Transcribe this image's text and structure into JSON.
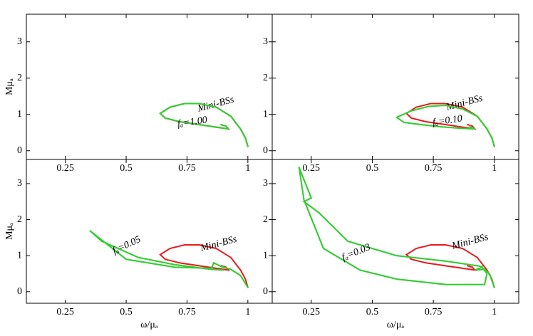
{
  "chart_data": [
    {
      "type": "line",
      "ylabel": "Mμₐ",
      "xlim": [
        0.09,
        1.1
      ],
      "ylim": [
        -0.24,
        3.76
      ],
      "xticks": [
        0.25,
        0.5,
        0.75,
        1
      ],
      "yticks": [
        0,
        1,
        2,
        3
      ],
      "series": [
        {
          "name": "Mini-BSs",
          "color": "#e8191c",
          "x": [
            1,
            0.99,
            0.97,
            0.93,
            0.87,
            0.8,
            0.74,
            0.68,
            0.64,
            0.66,
            0.72,
            0.8,
            0.87,
            0.92,
            0.91,
            0.89
          ],
          "values": [
            0.12,
            0.35,
            0.6,
            0.95,
            1.2,
            1.3,
            1.3,
            1.2,
            1.03,
            0.9,
            0.8,
            0.72,
            0.65,
            0.6,
            0.68,
            0.72
          ]
        },
        {
          "name": "fₐ=1.00",
          "color": "#33cc33",
          "x": [
            1,
            0.99,
            0.97,
            0.93,
            0.87,
            0.8,
            0.74,
            0.68,
            0.64,
            0.66,
            0.72,
            0.8,
            0.87,
            0.92,
            0.91,
            0.89
          ],
          "values": [
            0.12,
            0.35,
            0.6,
            0.95,
            1.2,
            1.3,
            1.3,
            1.2,
            1.03,
            0.9,
            0.8,
            0.72,
            0.65,
            0.6,
            0.68,
            0.72
          ]
        }
      ]
    },
    {
      "type": "line",
      "xlim": [
        0.09,
        1.1
      ],
      "ylim": [
        -0.24,
        3.76
      ],
      "xticks": [
        0.25,
        0.5,
        0.75,
        1
      ],
      "yticks": [
        0,
        1,
        2,
        3
      ],
      "series": [
        {
          "name": "Mini-BSs",
          "color": "#e8191c",
          "x": [
            1,
            0.99,
            0.97,
            0.93,
            0.87,
            0.8,
            0.74,
            0.68,
            0.64,
            0.66,
            0.72,
            0.8,
            0.87,
            0.92,
            0.91,
            0.89
          ],
          "values": [
            0.12,
            0.35,
            0.6,
            0.95,
            1.2,
            1.3,
            1.3,
            1.2,
            1.03,
            0.9,
            0.8,
            0.72,
            0.65,
            0.6,
            0.68,
            0.72
          ]
        },
        {
          "name": "fₐ=0.10",
          "color": "#33cc33",
          "x": [
            1,
            0.99,
            0.97,
            0.93,
            0.87,
            0.8,
            0.73,
            0.66,
            0.6,
            0.63,
            0.7,
            0.78,
            0.86,
            0.92,
            0.9
          ],
          "values": [
            0.12,
            0.35,
            0.6,
            0.95,
            1.15,
            1.25,
            1.22,
            1.1,
            0.92,
            0.78,
            0.72,
            0.66,
            0.62,
            0.6,
            0.68
          ]
        }
      ]
    },
    {
      "type": "line",
      "ylabel": "Mμₐ",
      "xlabel": "ω/μₐ",
      "xlim": [
        0.09,
        1.1
      ],
      "ylim": [
        -0.32,
        3.67
      ],
      "xticks": [
        0.25,
        0.5,
        0.75,
        1
      ],
      "yticks": [
        0,
        1,
        2,
        3
      ],
      "series": [
        {
          "name": "Mini-BSs",
          "color": "#e8191c",
          "x": [
            1,
            0.99,
            0.97,
            0.93,
            0.87,
            0.8,
            0.74,
            0.68,
            0.64,
            0.66,
            0.72,
            0.8,
            0.87,
            0.92,
            0.91,
            0.89
          ],
          "values": [
            0.12,
            0.35,
            0.6,
            0.95,
            1.2,
            1.3,
            1.3,
            1.2,
            1.03,
            0.9,
            0.8,
            0.72,
            0.65,
            0.6,
            0.68,
            0.72
          ]
        },
        {
          "name": "fₐ=0.05",
          "color": "#33cc33",
          "x": [
            1,
            0.97,
            0.93,
            0.89,
            0.86,
            0.85,
            0.7,
            0.5,
            0.35,
            0.4,
            0.55,
            0.7,
            0.85,
            0.9
          ],
          "values": [
            0.12,
            0.45,
            0.62,
            0.7,
            0.8,
            0.65,
            0.68,
            0.9,
            1.7,
            1.4,
            0.95,
            0.75,
            0.62,
            0.6
          ]
        }
      ]
    },
    {
      "type": "line",
      "xlabel": "ω/μₐ",
      "xlim": [
        0.09,
        1.1
      ],
      "ylim": [
        -0.32,
        3.67
      ],
      "xticks": [
        0.25,
        0.5,
        0.75,
        1
      ],
      "yticks": [
        0,
        1,
        2,
        3
      ],
      "series": [
        {
          "name": "Mini-BSs",
          "color": "#e8191c",
          "x": [
            1,
            0.99,
            0.97,
            0.93,
            0.87,
            0.8,
            0.74,
            0.68,
            0.64,
            0.66,
            0.72,
            0.8,
            0.87,
            0.92,
            0.91,
            0.89
          ],
          "values": [
            0.12,
            0.35,
            0.6,
            0.95,
            1.2,
            1.3,
            1.3,
            1.2,
            1.03,
            0.9,
            0.8,
            0.72,
            0.65,
            0.6,
            0.68,
            0.72
          ]
        },
        {
          "name": "fₐ=0.03",
          "color": "#33cc33",
          "x": [
            1,
            0.98,
            0.96,
            0.92,
            0.95,
            0.97,
            0.96,
            0.8,
            0.6,
            0.45,
            0.3,
            0.22,
            0.2,
            0.25,
            0.22,
            0.28,
            0.4,
            0.6,
            0.8,
            0.95
          ],
          "values": [
            0.12,
            0.5,
            0.62,
            0.6,
            0.68,
            0.5,
            0.2,
            0.2,
            0.35,
            0.6,
            1.2,
            2.55,
            3.45,
            2.6,
            2.5,
            2.2,
            1.4,
            1.0,
            0.85,
            0.7
          ]
        }
      ]
    }
  ]
}
